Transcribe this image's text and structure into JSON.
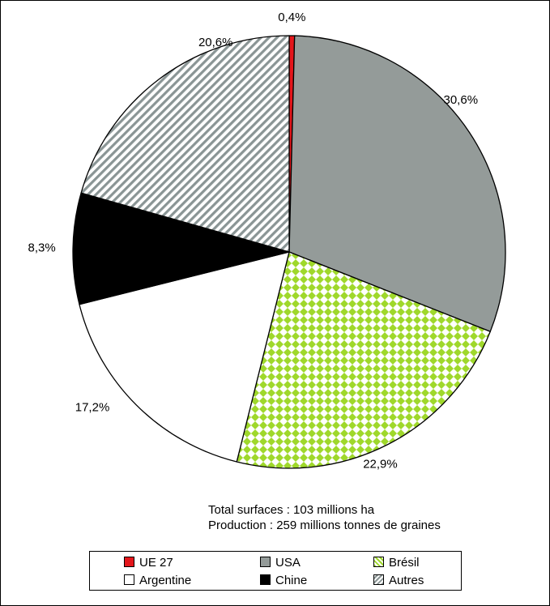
{
  "chart_data": {
    "type": "pie",
    "start": "12 o'clock, clockwise",
    "slices": [
      {
        "name": "UE 27",
        "value": 0.4,
        "label": "0,4%",
        "color": "#e4161b",
        "fill": "solid"
      },
      {
        "name": "USA",
        "value": 30.6,
        "label": "30,6%",
        "color": "#949b99",
        "fill": "solid"
      },
      {
        "name": "Brésil",
        "value": 22.9,
        "label": "22,9%",
        "color": "#9fd82b",
        "fill": "checkered"
      },
      {
        "name": "Argentine",
        "value": 17.2,
        "label": "17,2%",
        "color": "#ffffff",
        "fill": "solid"
      },
      {
        "name": "Chine",
        "value": 8.3,
        "label": "8,3%",
        "color": "#000000",
        "fill": "solid"
      },
      {
        "name": "Autres",
        "value": 20.6,
        "label": "20,6%",
        "color": "#8a9595",
        "fill": "diagonal-stripes"
      }
    ],
    "legend_position": "bottom"
  },
  "notes": {
    "line1": "Total surfaces : 103 millions ha",
    "line2": "Production : 259 millions tonnes de graines"
  },
  "legend": [
    {
      "label": "UE 27",
      "swatch": "ue"
    },
    {
      "label": "USA",
      "swatch": "usa"
    },
    {
      "label": "Brésil",
      "swatch": "bre"
    },
    {
      "label": "Argentine",
      "swatch": "arg"
    },
    {
      "label": "Chine",
      "swatch": "chi"
    },
    {
      "label": "Autres",
      "swatch": "aut"
    }
  ]
}
